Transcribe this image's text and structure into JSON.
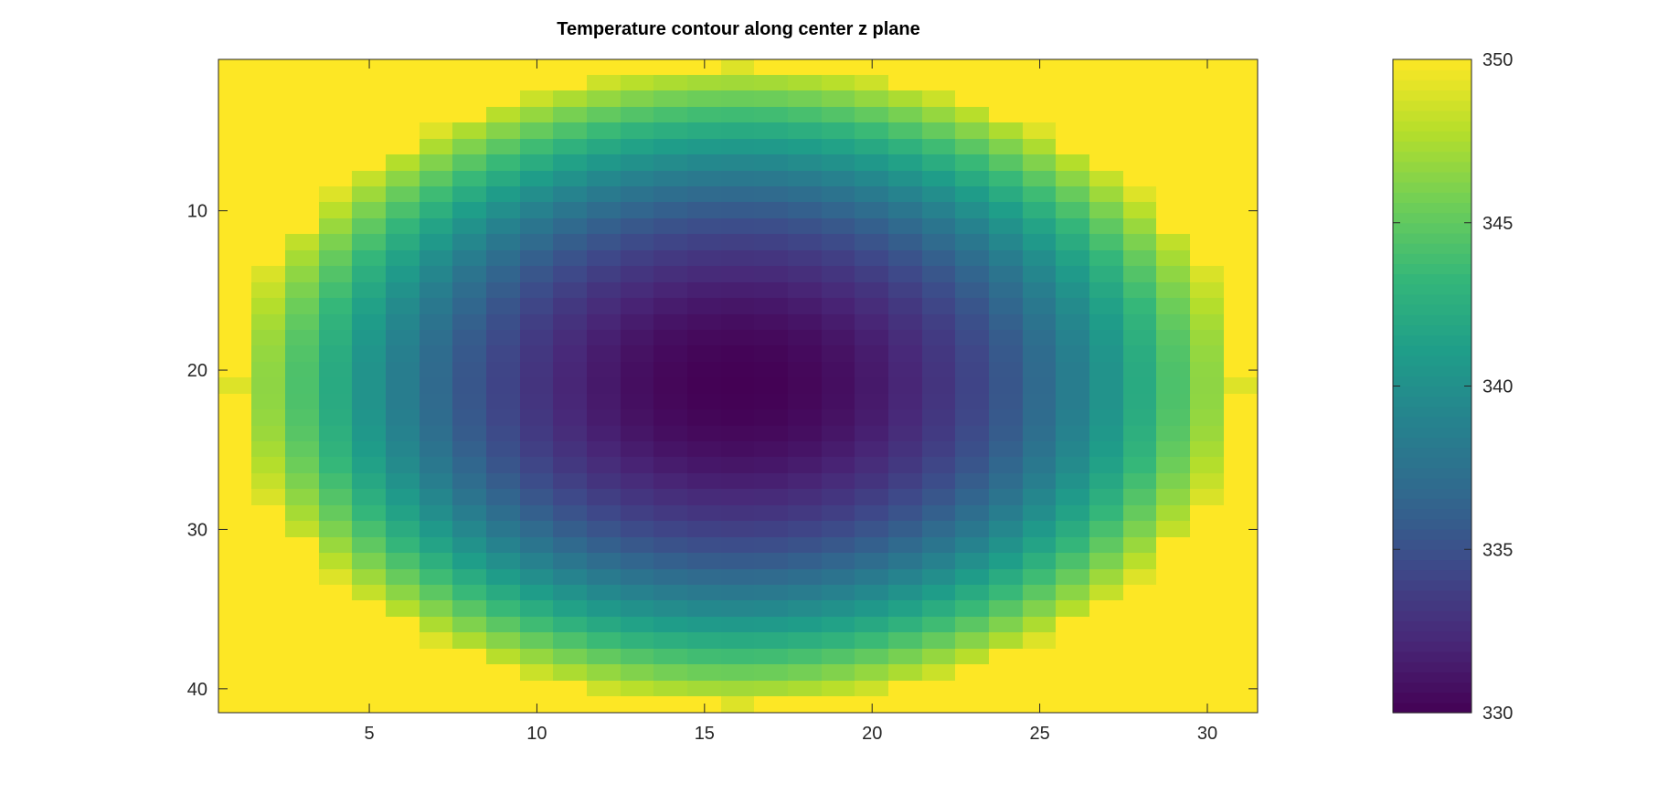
{
  "chart_data": {
    "type": "heatmap",
    "title": "Temperature contour along center z plane",
    "xlabel": "",
    "ylabel": "",
    "columns": 31,
    "rows": 41,
    "xlim": [
      0.5,
      31.5
    ],
    "ylim": [
      0.5,
      41.5
    ],
    "y_axis_direction": "reversed",
    "x_ticks": [
      5,
      10,
      15,
      20,
      25,
      30
    ],
    "y_ticks": [
      10,
      20,
      30,
      40
    ],
    "color_range": [
      330,
      350
    ],
    "colorbar_ticks": [
      330,
      335,
      340,
      345,
      350
    ],
    "colormap": "viridis",
    "boundary_value": 350,
    "hot_region_shape": "ellipse",
    "ellipse_center": [
      16,
      21
    ],
    "ellipse_semi_axis_x": 15,
    "ellipse_semi_axis_y": 20,
    "ellipse_boundary_value": 349,
    "min_value": 330,
    "min_location": [
      16,
      21
    ],
    "grid": false,
    "legend": "colorbar-right"
  },
  "colors": {
    "background": "#ffffff",
    "axes_border": "#262626",
    "viridis_stops": [
      "#440154",
      "#482878",
      "#3e4989",
      "#31688e",
      "#26828e",
      "#1f9e89",
      "#35b779",
      "#6ece58",
      "#b5de2b",
      "#fde725"
    ]
  }
}
